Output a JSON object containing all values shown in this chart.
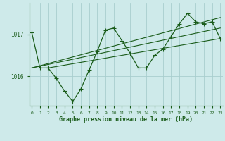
{
  "title": "Graphe pression niveau de la mer (hPa)",
  "bg_color": "#ceeaea",
  "grid_color": "#a8cece",
  "line_color": "#1a5c1a",
  "x_ticks": [
    0,
    1,
    2,
    3,
    4,
    5,
    6,
    7,
    8,
    9,
    10,
    11,
    12,
    13,
    14,
    15,
    16,
    17,
    18,
    19,
    20,
    21,
    22,
    23
  ],
  "y_ticks": [
    1016,
    1017
  ],
  "ylim": [
    1015.3,
    1017.75
  ],
  "xlim": [
    -0.3,
    23.3
  ],
  "series1_x": [
    0,
    1,
    2,
    3,
    4,
    5,
    6,
    7,
    8,
    9,
    10,
    11,
    12,
    13,
    14,
    15,
    16,
    17,
    18,
    19,
    20,
    21,
    22,
    23
  ],
  "series1_y": [
    1017.05,
    1016.2,
    1016.2,
    1015.95,
    1015.65,
    1015.4,
    1015.7,
    1016.15,
    1016.6,
    1017.1,
    1017.15,
    1016.85,
    1016.55,
    1016.2,
    1016.2,
    1016.5,
    1016.65,
    1016.95,
    1017.25,
    1017.5,
    1017.3,
    1017.25,
    1017.3,
    1016.9
  ],
  "series2_x": [
    0,
    23
  ],
  "series2_y": [
    1016.2,
    1017.15
  ],
  "series3_x": [
    0,
    23
  ],
  "series3_y": [
    1016.2,
    1017.4
  ],
  "series4_x": [
    2,
    23
  ],
  "series4_y": [
    1016.2,
    1016.9
  ]
}
